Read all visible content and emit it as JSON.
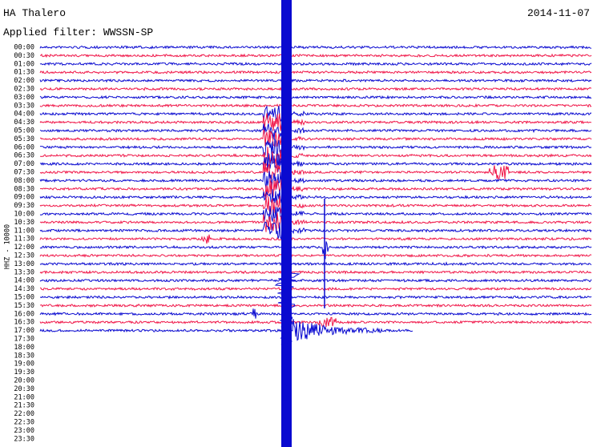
{
  "header": {
    "station": "HA Thalero",
    "date": "2014-11-07",
    "filter": "Applied filter: WWSSN-SP"
  },
  "axis_label": "HHZ - 10000",
  "rows": [
    "00:00",
    "00:30",
    "01:00",
    "01:30",
    "02:00",
    "02:30",
    "03:00",
    "03:30",
    "04:00",
    "04:30",
    "05:00",
    "05:30",
    "06:00",
    "06:30",
    "07:00",
    "07:30",
    "08:00",
    "08:30",
    "09:00",
    "09:30",
    "10:00",
    "10:30",
    "11:00",
    "11:30",
    "12:00",
    "12:30",
    "13:00",
    "13:30",
    "14:00",
    "14:30",
    "15:00",
    "15:30",
    "16:00",
    "16:30",
    "17:00",
    "17:30",
    "18:00",
    "18:30",
    "19:00",
    "19:30",
    "20:00",
    "20:30",
    "21:00",
    "21:30",
    "22:00",
    "22:30",
    "23:00",
    "23:30"
  ],
  "rows_recorded": 35,
  "colors": [
    "#0a0ad0",
    "#f0184a"
  ]
}
